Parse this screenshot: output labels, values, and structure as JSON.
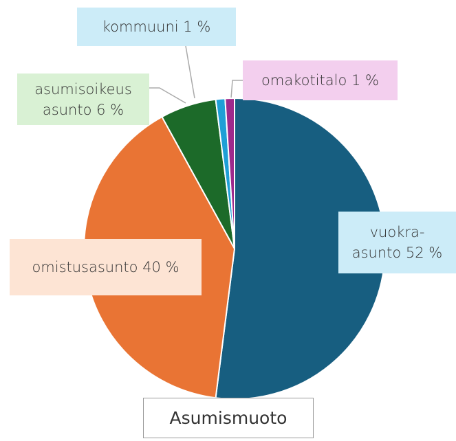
{
  "chart_data": {
    "type": "pie",
    "title": "Asumismuoto",
    "values": [
      52,
      40,
      6,
      1,
      1
    ],
    "value_labels": [
      "vuokra-\nasunto 52 %",
      "omistusasunto 40 %",
      "asumisoikeus\nasunto 6 %",
      "kommuuni 1 %",
      "omakotitalo 1 %"
    ],
    "colors": [
      "#175e80",
      "#e97434",
      "#1c6a29",
      "#1f9fd6",
      "#9d2a8c"
    ],
    "label_colors": [
      "#ccecf8",
      "#fde4d4",
      "#d9f1d4",
      "#ccecf8",
      "#f3cfee"
    ]
  }
}
